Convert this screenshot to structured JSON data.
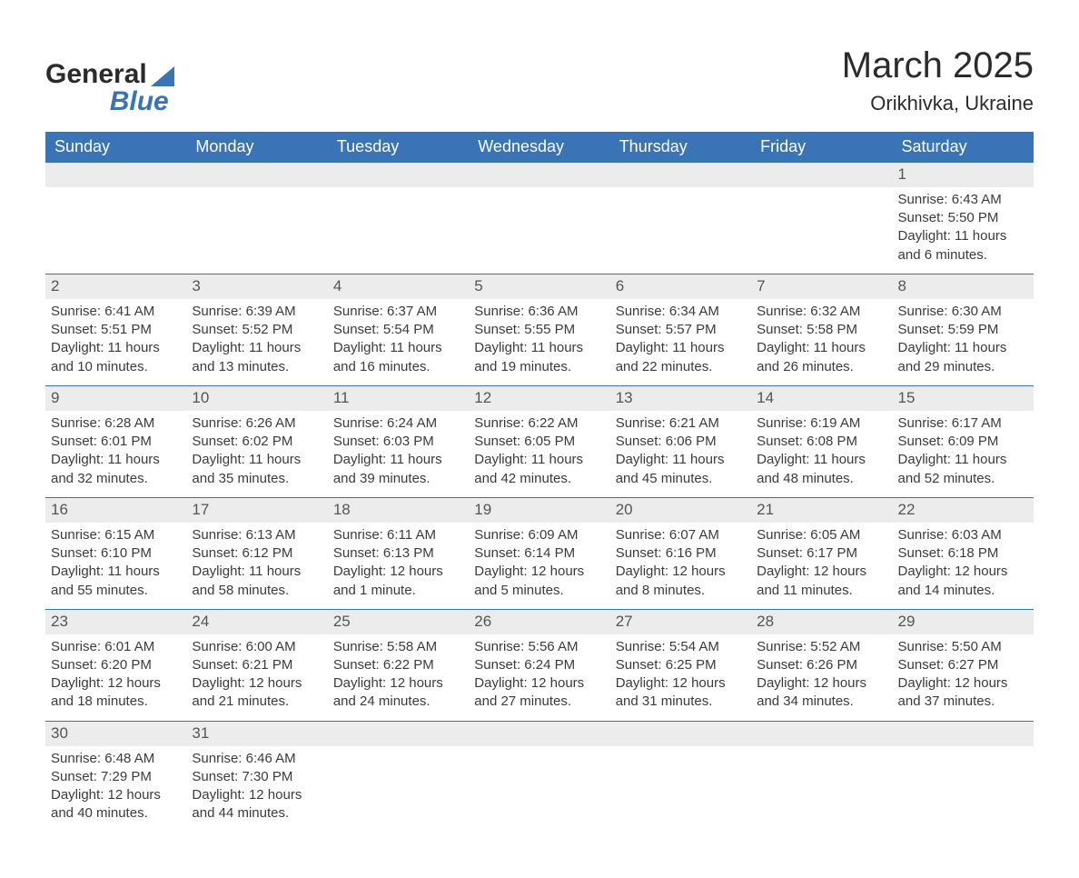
{
  "brand": {
    "top": "General",
    "bottom": "Blue"
  },
  "title": "March 2025",
  "location": "Orikhivka, Ukraine",
  "colors": {
    "header_bg": "#3a74b7",
    "header_text": "#ffffff",
    "row_alt": "#ececec",
    "text": "#3b3b3b",
    "page_bg": "#ffffff"
  },
  "day_headers": [
    "Sunday",
    "Monday",
    "Tuesday",
    "Wednesday",
    "Thursday",
    "Friday",
    "Saturday"
  ],
  "weeks": [
    {
      "nums": [
        "",
        "",
        "",
        "",
        "",
        "",
        "1"
      ],
      "sunrise": [
        "",
        "",
        "",
        "",
        "",
        "",
        "Sunrise: 6:43 AM"
      ],
      "sunset": [
        "",
        "",
        "",
        "",
        "",
        "",
        "Sunset: 5:50 PM"
      ],
      "day1": [
        "",
        "",
        "",
        "",
        "",
        "",
        "Daylight: 11 hours"
      ],
      "day2": [
        "",
        "",
        "",
        "",
        "",
        "",
        "and 6 minutes."
      ]
    },
    {
      "nums": [
        "2",
        "3",
        "4",
        "5",
        "6",
        "7",
        "8"
      ],
      "sunrise": [
        "Sunrise: 6:41 AM",
        "Sunrise: 6:39 AM",
        "Sunrise: 6:37 AM",
        "Sunrise: 6:36 AM",
        "Sunrise: 6:34 AM",
        "Sunrise: 6:32 AM",
        "Sunrise: 6:30 AM"
      ],
      "sunset": [
        "Sunset: 5:51 PM",
        "Sunset: 5:52 PM",
        "Sunset: 5:54 PM",
        "Sunset: 5:55 PM",
        "Sunset: 5:57 PM",
        "Sunset: 5:58 PM",
        "Sunset: 5:59 PM"
      ],
      "day1": [
        "Daylight: 11 hours",
        "Daylight: 11 hours",
        "Daylight: 11 hours",
        "Daylight: 11 hours",
        "Daylight: 11 hours",
        "Daylight: 11 hours",
        "Daylight: 11 hours"
      ],
      "day2": [
        "and 10 minutes.",
        "and 13 minutes.",
        "and 16 minutes.",
        "and 19 minutes.",
        "and 22 minutes.",
        "and 26 minutes.",
        "and 29 minutes."
      ]
    },
    {
      "nums": [
        "9",
        "10",
        "11",
        "12",
        "13",
        "14",
        "15"
      ],
      "sunrise": [
        "Sunrise: 6:28 AM",
        "Sunrise: 6:26 AM",
        "Sunrise: 6:24 AM",
        "Sunrise: 6:22 AM",
        "Sunrise: 6:21 AM",
        "Sunrise: 6:19 AM",
        "Sunrise: 6:17 AM"
      ],
      "sunset": [
        "Sunset: 6:01 PM",
        "Sunset: 6:02 PM",
        "Sunset: 6:03 PM",
        "Sunset: 6:05 PM",
        "Sunset: 6:06 PM",
        "Sunset: 6:08 PM",
        "Sunset: 6:09 PM"
      ],
      "day1": [
        "Daylight: 11 hours",
        "Daylight: 11 hours",
        "Daylight: 11 hours",
        "Daylight: 11 hours",
        "Daylight: 11 hours",
        "Daylight: 11 hours",
        "Daylight: 11 hours"
      ],
      "day2": [
        "and 32 minutes.",
        "and 35 minutes.",
        "and 39 minutes.",
        "and 42 minutes.",
        "and 45 minutes.",
        "and 48 minutes.",
        "and 52 minutes."
      ]
    },
    {
      "nums": [
        "16",
        "17",
        "18",
        "19",
        "20",
        "21",
        "22"
      ],
      "sunrise": [
        "Sunrise: 6:15 AM",
        "Sunrise: 6:13 AM",
        "Sunrise: 6:11 AM",
        "Sunrise: 6:09 AM",
        "Sunrise: 6:07 AM",
        "Sunrise: 6:05 AM",
        "Sunrise: 6:03 AM"
      ],
      "sunset": [
        "Sunset: 6:10 PM",
        "Sunset: 6:12 PM",
        "Sunset: 6:13 PM",
        "Sunset: 6:14 PM",
        "Sunset: 6:16 PM",
        "Sunset: 6:17 PM",
        "Sunset: 6:18 PM"
      ],
      "day1": [
        "Daylight: 11 hours",
        "Daylight: 11 hours",
        "Daylight: 12 hours",
        "Daylight: 12 hours",
        "Daylight: 12 hours",
        "Daylight: 12 hours",
        "Daylight: 12 hours"
      ],
      "day2": [
        "and 55 minutes.",
        "and 58 minutes.",
        "and 1 minute.",
        "and 5 minutes.",
        "and 8 minutes.",
        "and 11 minutes.",
        "and 14 minutes."
      ]
    },
    {
      "nums": [
        "23",
        "24",
        "25",
        "26",
        "27",
        "28",
        "29"
      ],
      "sunrise": [
        "Sunrise: 6:01 AM",
        "Sunrise: 6:00 AM",
        "Sunrise: 5:58 AM",
        "Sunrise: 5:56 AM",
        "Sunrise: 5:54 AM",
        "Sunrise: 5:52 AM",
        "Sunrise: 5:50 AM"
      ],
      "sunset": [
        "Sunset: 6:20 PM",
        "Sunset: 6:21 PM",
        "Sunset: 6:22 PM",
        "Sunset: 6:24 PM",
        "Sunset: 6:25 PM",
        "Sunset: 6:26 PM",
        "Sunset: 6:27 PM"
      ],
      "day1": [
        "Daylight: 12 hours",
        "Daylight: 12 hours",
        "Daylight: 12 hours",
        "Daylight: 12 hours",
        "Daylight: 12 hours",
        "Daylight: 12 hours",
        "Daylight: 12 hours"
      ],
      "day2": [
        "and 18 minutes.",
        "and 21 minutes.",
        "and 24 minutes.",
        "and 27 minutes.",
        "and 31 minutes.",
        "and 34 minutes.",
        "and 37 minutes."
      ]
    },
    {
      "nums": [
        "30",
        "31",
        "",
        "",
        "",
        "",
        ""
      ],
      "sunrise": [
        "Sunrise: 6:48 AM",
        "Sunrise: 6:46 AM",
        "",
        "",
        "",
        "",
        ""
      ],
      "sunset": [
        "Sunset: 7:29 PM",
        "Sunset: 7:30 PM",
        "",
        "",
        "",
        "",
        ""
      ],
      "day1": [
        "Daylight: 12 hours",
        "Daylight: 12 hours",
        "",
        "",
        "",
        "",
        ""
      ],
      "day2": [
        "and 40 minutes.",
        "and 44 minutes.",
        "",
        "",
        "",
        "",
        ""
      ]
    }
  ]
}
